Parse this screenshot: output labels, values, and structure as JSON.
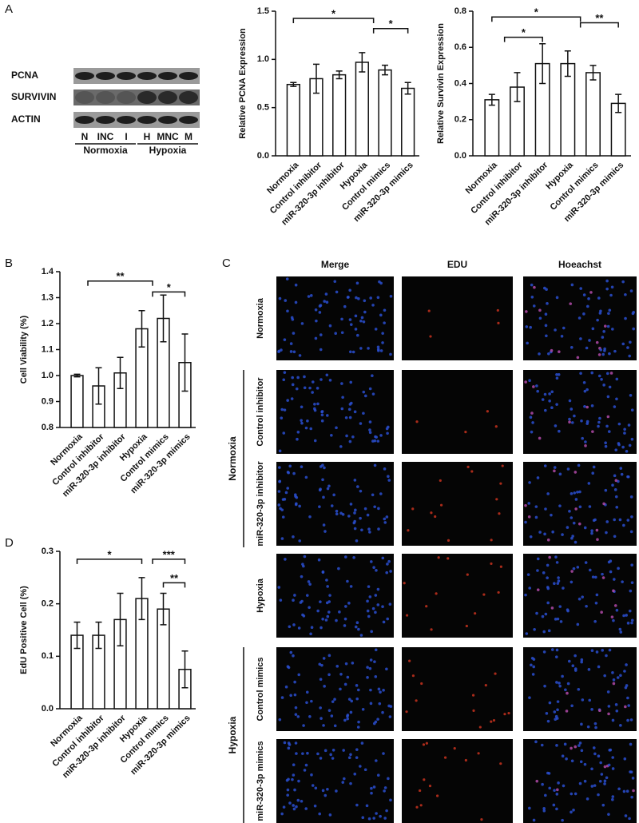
{
  "panels": {
    "labels": [
      "A",
      "B",
      "C",
      "D"
    ]
  },
  "blot": {
    "rows": [
      "PCNA",
      "SURVIVIN",
      "ACTIN"
    ],
    "lanes": [
      "N",
      "INC",
      "I",
      "H",
      "MNC",
      "M"
    ],
    "groups": [
      "Normoxia",
      "Hypoxia"
    ]
  },
  "chart_data": [
    {
      "type": "bar",
      "ylabel": "Relative PCNA Expression",
      "categories": [
        "Normoxia",
        "Control inhibitor",
        "miR-320-3p inhibitor",
        "Hypoxia",
        "Control mimics",
        "miR-320-3p mimics"
      ],
      "values": [
        0.74,
        0.8,
        0.84,
        0.97,
        0.89,
        0.7
      ],
      "errors": [
        0.02,
        0.15,
        0.04,
        0.1,
        0.05,
        0.06
      ],
      "ylim": [
        0,
        1.5
      ],
      "yticks": [
        {
          "value": 0,
          "label": "0.0"
        },
        0.5,
        {
          "value": 1,
          "label": "1.0"
        },
        1.5
      ],
      "significance": [
        "*",
        "*"
      ],
      "color": "#ffffff"
    },
    {
      "type": "bar",
      "ylabel": "Relative Survivin Expression",
      "categories": [
        "Normoxia",
        "Control inhibitor",
        "miR-320-3p inhibitor",
        "Hypoxia",
        "Control mimics",
        "miR-320-3p mimics"
      ],
      "values": [
        0.31,
        0.38,
        0.51,
        0.51,
        0.46,
        0.29
      ],
      "errors": [
        0.03,
        0.08,
        0.11,
        0.07,
        0.04,
        0.05
      ],
      "ylim": [
        0,
        0.8
      ],
      "yticks": [
        {
          "value": 0,
          "label": "0.0"
        },
        0.2,
        0.4,
        0.6,
        0.8
      ],
      "significance": [
        "*",
        "**",
        "*"
      ],
      "color": "#ffffff"
    },
    {
      "type": "bar",
      "ylabel": "Cell Viability (%)",
      "categories": [
        "Normoxia",
        "Control inhibitor",
        "miR-320-3p inhibitor",
        "Hypoxia",
        "Control mimics",
        "miR-320-3p mimics"
      ],
      "values": [
        1.0,
        0.96,
        1.01,
        1.18,
        1.22,
        1.05
      ],
      "errors": [
        0.005,
        0.07,
        0.06,
        0.07,
        0.09,
        0.11
      ],
      "ylim": [
        0.8,
        1.4
      ],
      "yticks": [
        0.8,
        0.9,
        {
          "value": 1,
          "label": "1.0"
        },
        1.1,
        1.2,
        1.3,
        1.4
      ],
      "significance": [
        "**",
        "*"
      ],
      "color": "#ffffff"
    },
    {
      "type": "bar",
      "ylabel": "EdU Positive Cell (%)",
      "categories": [
        "Normoxia",
        "Control inhibitor",
        "miR-320-3p inhibitor",
        "Hypoxia",
        "Control mimics",
        "miR-320-3p mimics"
      ],
      "values": [
        0.14,
        0.14,
        0.17,
        0.21,
        0.19,
        0.075
      ],
      "errors": [
        0.025,
        0.025,
        0.05,
        0.04,
        0.03,
        0.035
      ],
      "ylim": [
        0,
        0.3
      ],
      "yticks": [
        {
          "value": 0,
          "label": "0.0"
        },
        0.1,
        0.2,
        0.3
      ],
      "significance": [
        "*",
        "***",
        "**"
      ],
      "color": "#ffffff"
    }
  ],
  "microscopy": {
    "columns": [
      "Merge",
      "EDU",
      "Hoeachst"
    ],
    "rows": [
      "Normoxia",
      "Control inhibitor",
      "miR-320-3p inhibitor",
      "Hypoxia",
      "Control mimics",
      "miR-320-3p mimics"
    ],
    "groups": [
      "Normoxia",
      "Hypoxia"
    ]
  }
}
